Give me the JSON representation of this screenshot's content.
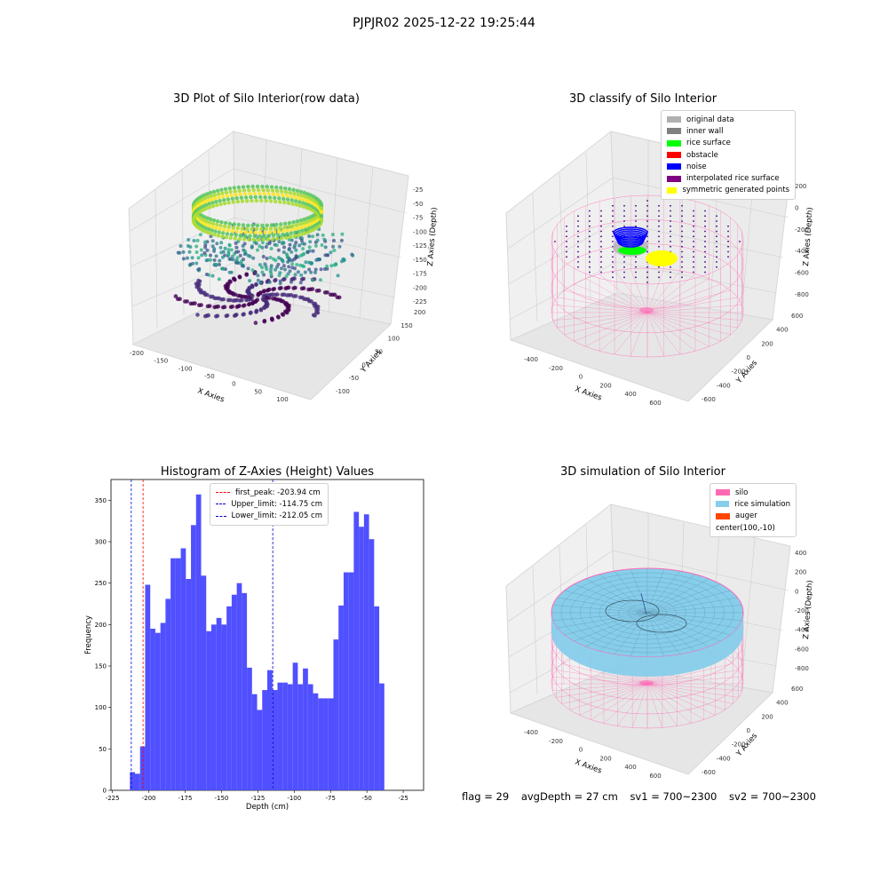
{
  "figure": {
    "suptitle": "PJPJR02 2025-12-22 19:25:44",
    "caption": {
      "flag": "flag = 29",
      "avg_depth": "avgDepth = 27 cm",
      "sv1": "sv1 = 700~2300",
      "sv2": "sv2 = 700~2300"
    }
  },
  "colors": {
    "hist_bar": "#4c4cff",
    "first_peak": "#ff0000",
    "limits": "#0000cc",
    "silo": "#ff69b4",
    "rice_simulation": "#87ceeb",
    "auger": "#ff4500"
  },
  "panels": {
    "raw": {
      "title": "3D Plot of Silo Interior(row data)",
      "xlabel": "X Axies",
      "ylabel": "Y Axies",
      "zlabel": "Z Axies (Depth)",
      "xticks": [
        "-200",
        "-150",
        "-100",
        "-50",
        "0",
        "50",
        "100"
      ],
      "yticks": [
        "-100",
        "-50",
        "0",
        "50",
        "100",
        "150",
        "200"
      ],
      "zticks": [
        "-25",
        "-50",
        "-75",
        "-100",
        "-125",
        "-150",
        "-175",
        "-200",
        "-225"
      ],
      "colormap": "viridis"
    },
    "classify": {
      "title": "3D classify of Silo Interior",
      "xlabel": "X Axies",
      "ylabel": "Y Axies",
      "zlabel": "Z Axies (Depth)",
      "xticks": [
        "-400",
        "-200",
        "0",
        "200",
        "400",
        "600"
      ],
      "yticks": [
        "-600",
        "-400",
        "-200",
        "0",
        "200",
        "400",
        "600"
      ],
      "zticks": [
        "200",
        "0",
        "-200",
        "-400",
        "-600",
        "-800"
      ],
      "legend": [
        {
          "label": "original data",
          "color": "#b0b0b0"
        },
        {
          "label": "inner wall",
          "color": "#808080"
        },
        {
          "label": "rice surface",
          "color": "#00ff00"
        },
        {
          "label": "obstacle",
          "color": "#ff0000"
        },
        {
          "label": "noise",
          "color": "#0000ff"
        },
        {
          "label": "interpolated rice surface",
          "color": "#800080"
        },
        {
          "label": "symmetric generated points",
          "color": "#ffff00"
        }
      ]
    },
    "histogram": {
      "title": "Histogram of Z-Axies (Height) Values",
      "xlabel": "Depth (cm)",
      "ylabel": "Frequency",
      "legend": [
        {
          "label": "first_peak: -203.94 cm",
          "color": "#ff0000"
        },
        {
          "label": "Upper_limit: -114.75 cm",
          "color": "#0000cc"
        },
        {
          "label": "Lower_limit: -212.05 cm",
          "color": "#0000cc"
        }
      ]
    },
    "simulation": {
      "title": "3D simulation of Silo Interior",
      "xlabel": "X Axies",
      "ylabel": "Y Axies",
      "zlabel": "Z Axies (Depth)",
      "xticks": [
        "-400",
        "-200",
        "0",
        "200",
        "400",
        "600"
      ],
      "yticks": [
        "-600",
        "-400",
        "-200",
        "0",
        "200",
        "400",
        "600"
      ],
      "zticks": [
        "400",
        "200",
        "0",
        "-200",
        "-400",
        "-600",
        "-800"
      ],
      "legend": [
        {
          "label": "silo",
          "color": "#ff69b4"
        },
        {
          "label": "rice simulation",
          "color": "#87ceeb"
        },
        {
          "label": "auger",
          "color": "#ff4500"
        },
        {
          "label": "center(100,-10)",
          "color": ""
        }
      ]
    }
  },
  "chart_data": [
    {
      "type": "scatter",
      "title": "3D Plot of Silo Interior(row data)",
      "xlabel": "X Axies",
      "ylabel": "Y Axies",
      "zlabel": "Z Axies (Depth)",
      "xlim": [
        -210,
        130
      ],
      "ylim": [
        -120,
        210
      ],
      "zlim": [
        -235,
        -15
      ],
      "color_by": "z",
      "colormap": "viridis"
    },
    {
      "type": "scatter",
      "title": "3D classify of Silo Interior",
      "xlabel": "X Axies",
      "ylabel": "Y Axies",
      "zlabel": "Z Axies (Depth)",
      "xlim": [
        -500,
        700
      ],
      "ylim": [
        -700,
        700
      ],
      "zlim": [
        -900,
        300
      ],
      "series": [
        {
          "name": "original data"
        },
        {
          "name": "inner wall"
        },
        {
          "name": "rice surface"
        },
        {
          "name": "obstacle"
        },
        {
          "name": "noise"
        },
        {
          "name": "interpolated rice surface"
        },
        {
          "name": "symmetric generated points"
        }
      ]
    },
    {
      "type": "bar",
      "title": "Histogram of Z-Axies (Height) Values",
      "xlabel": "Depth (cm)",
      "ylabel": "Frequency",
      "xlim": [
        -226,
        -11
      ],
      "ylim": [
        0,
        375
      ],
      "xticks": [
        -225,
        -200,
        -175,
        -150,
        -125,
        -100,
        -75,
        -50,
        -25
      ],
      "yticks": [
        0,
        50,
        100,
        150,
        200,
        250,
        300,
        350
      ],
      "bin_start": -213.0,
      "bin_width": 3.5,
      "values": [
        22,
        20,
        53,
        248,
        195,
        190,
        202,
        231,
        280,
        280,
        292,
        255,
        320,
        357,
        259,
        192,
        200,
        208,
        200,
        222,
        236,
        250,
        238,
        148,
        116,
        97,
        121,
        145,
        121,
        130,
        130,
        128,
        154,
        128,
        147,
        128,
        117,
        111,
        111,
        111,
        182,
        223,
        263,
        263,
        336,
        318,
        333,
        303,
        222,
        129
      ],
      "vlines": [
        {
          "name": "first_peak: -203.94 cm",
          "x": -203.94
        },
        {
          "name": "Upper_limit: -114.75 cm",
          "x": -114.75
        },
        {
          "name": "Lower_limit: -212.05 cm",
          "x": -212.05
        }
      ],
      "legend": "top-center"
    },
    {
      "type": "area",
      "title": "3D simulation of Silo Interior",
      "xlabel": "X Axies",
      "ylabel": "Y Axies",
      "zlabel": "Z Axies (Depth)",
      "xlim": [
        -500,
        700
      ],
      "ylim": [
        -700,
        700
      ],
      "zlim": [
        -900,
        450
      ],
      "series": [
        {
          "name": "silo"
        },
        {
          "name": "rice simulation"
        },
        {
          "name": "auger"
        },
        {
          "name": "center(100,-10)"
        }
      ],
      "legend": "top-right"
    }
  ]
}
